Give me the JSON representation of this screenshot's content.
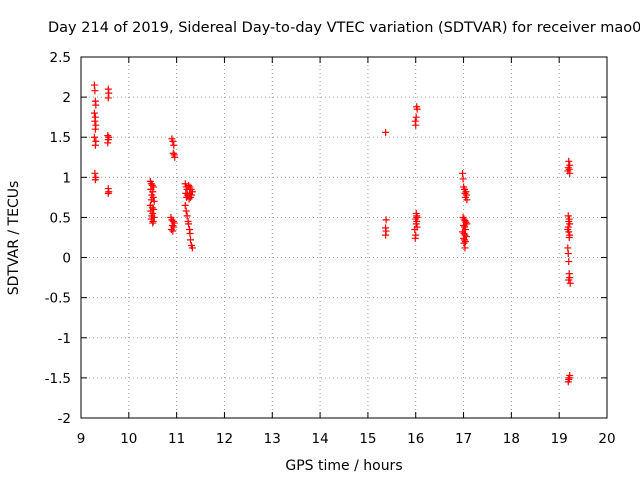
{
  "chart_data": {
    "type": "scatter",
    "title": "Day 214 of 2019, Sidereal Day-to-day VTEC variation (SDTVAR) for receiver mao0",
    "xlabel": "GPS time / hours",
    "ylabel": "SDTVAR / TECUs",
    "xlim": [
      9,
      20
    ],
    "ylim": [
      -2,
      2.5
    ],
    "xticks": [
      9,
      10,
      11,
      12,
      13,
      14,
      15,
      16,
      17,
      18,
      19,
      20
    ],
    "yticks": [
      -2,
      -1.5,
      -1,
      -0.5,
      0,
      0.5,
      1,
      1.5,
      2,
      2.5
    ],
    "grid": true,
    "marker": "+",
    "color": "#ff0000",
    "series": [
      {
        "name": "SDTVAR",
        "points": [
          [
            9.28,
            2.15
          ],
          [
            9.29,
            2.08
          ],
          [
            9.3,
            1.95
          ],
          [
            9.31,
            1.9
          ],
          [
            9.28,
            1.8
          ],
          [
            9.3,
            1.75
          ],
          [
            9.29,
            1.7
          ],
          [
            9.31,
            1.65
          ],
          [
            9.3,
            1.6
          ],
          [
            9.28,
            1.5
          ],
          [
            9.31,
            1.45
          ],
          [
            9.3,
            1.4
          ],
          [
            9.29,
            1.05
          ],
          [
            9.31,
            1.0
          ],
          [
            9.3,
            0.97
          ],
          [
            9.57,
            2.1
          ],
          [
            9.58,
            2.05
          ],
          [
            9.57,
            1.99
          ],
          [
            9.56,
            1.52
          ],
          [
            9.58,
            1.5
          ],
          [
            9.57,
            1.47
          ],
          [
            9.56,
            1.43
          ],
          [
            9.57,
            0.86
          ],
          [
            9.58,
            0.82
          ],
          [
            9.57,
            0.8
          ],
          [
            10.45,
            0.95
          ],
          [
            10.47,
            0.92
          ],
          [
            10.49,
            0.9
          ],
          [
            10.52,
            0.88
          ],
          [
            10.46,
            0.85
          ],
          [
            10.5,
            0.82
          ],
          [
            10.48,
            0.78
          ],
          [
            10.51,
            0.75
          ],
          [
            10.47,
            0.72
          ],
          [
            10.53,
            0.7
          ],
          [
            10.45,
            0.65
          ],
          [
            10.49,
            0.62
          ],
          [
            10.52,
            0.6
          ],
          [
            10.46,
            0.58
          ],
          [
            10.5,
            0.55
          ],
          [
            10.48,
            0.52
          ],
          [
            10.53,
            0.5
          ],
          [
            10.47,
            0.48
          ],
          [
            10.51,
            0.45
          ],
          [
            10.5,
            0.43
          ],
          [
            10.9,
            1.48
          ],
          [
            10.92,
            1.45
          ],
          [
            10.94,
            1.4
          ],
          [
            10.93,
            1.3
          ],
          [
            10.95,
            1.28
          ],
          [
            10.96,
            1.25
          ],
          [
            10.88,
            0.5
          ],
          [
            10.9,
            0.47
          ],
          [
            10.93,
            0.45
          ],
          [
            10.95,
            0.43
          ],
          [
            10.91,
            0.4
          ],
          [
            10.94,
            0.38
          ],
          [
            10.89,
            0.35
          ],
          [
            10.92,
            0.33
          ],
          [
            11.18,
            0.92
          ],
          [
            11.2,
            0.88
          ],
          [
            11.22,
            0.85
          ],
          [
            11.25,
            0.9
          ],
          [
            11.28,
            0.88
          ],
          [
            11.3,
            0.85
          ],
          [
            11.33,
            0.82
          ],
          [
            11.19,
            0.8
          ],
          [
            11.23,
            0.78
          ],
          [
            11.27,
            0.8
          ],
          [
            11.31,
            0.78
          ],
          [
            11.21,
            0.75
          ],
          [
            11.26,
            0.73
          ],
          [
            11.29,
            0.75
          ],
          [
            11.18,
            0.65
          ],
          [
            11.2,
            0.58
          ],
          [
            11.22,
            0.52
          ],
          [
            11.24,
            0.45
          ],
          [
            11.25,
            0.42
          ],
          [
            11.27,
            0.35
          ],
          [
            11.28,
            0.3
          ],
          [
            11.29,
            0.22
          ],
          [
            11.31,
            0.15
          ],
          [
            11.33,
            0.12
          ],
          [
            15.37,
            1.56
          ],
          [
            15.38,
            0.47
          ],
          [
            15.37,
            0.37
          ],
          [
            15.38,
            0.33
          ],
          [
            15.37,
            0.28
          ],
          [
            16.02,
            1.88
          ],
          [
            16.03,
            1.85
          ],
          [
            16.01,
            1.75
          ],
          [
            15.99,
            1.7
          ],
          [
            16.0,
            1.65
          ],
          [
            16.01,
            0.55
          ],
          [
            16.02,
            0.52
          ],
          [
            16.03,
            0.5
          ],
          [
            16.0,
            0.48
          ],
          [
            16.02,
            0.45
          ],
          [
            16.01,
            0.42
          ],
          [
            16.03,
            0.38
          ],
          [
            15.98,
            0.35
          ],
          [
            16.0,
            0.28
          ],
          [
            15.99,
            0.24
          ],
          [
            16.98,
            1.05
          ],
          [
            16.99,
            0.98
          ],
          [
            17.0,
            0.88
          ],
          [
            17.02,
            0.85
          ],
          [
            17.05,
            0.82
          ],
          [
            17.03,
            0.8
          ],
          [
            17.06,
            0.78
          ],
          [
            17.04,
            0.75
          ],
          [
            17.07,
            0.72
          ],
          [
            16.99,
            0.5
          ],
          [
            17.01,
            0.48
          ],
          [
            17.03,
            0.46
          ],
          [
            17.05,
            0.44
          ],
          [
            17.07,
            0.42
          ],
          [
            17.0,
            0.4
          ],
          [
            17.02,
            0.38
          ],
          [
            17.04,
            0.35
          ],
          [
            16.98,
            0.32
          ],
          [
            17.01,
            0.3
          ],
          [
            17.03,
            0.28
          ],
          [
            17.06,
            0.26
          ],
          [
            17.0,
            0.24
          ],
          [
            17.02,
            0.22
          ],
          [
            17.04,
            0.2
          ],
          [
            17.01,
            0.18
          ],
          [
            17.03,
            0.12
          ],
          [
            19.2,
            1.2
          ],
          [
            19.22,
            1.15
          ],
          [
            19.19,
            1.12
          ],
          [
            19.21,
            1.1
          ],
          [
            19.18,
            1.08
          ],
          [
            19.22,
            1.05
          ],
          [
            19.19,
            0.52
          ],
          [
            19.21,
            0.48
          ],
          [
            19.2,
            0.45
          ],
          [
            19.22,
            0.42
          ],
          [
            19.19,
            0.38
          ],
          [
            19.18,
            0.35
          ],
          [
            19.2,
            0.32
          ],
          [
            19.22,
            0.28
          ],
          [
            19.21,
            0.25
          ],
          [
            19.18,
            0.12
          ],
          [
            19.19,
            0.05
          ],
          [
            19.2,
            -0.05
          ],
          [
            19.21,
            -0.2
          ],
          [
            19.22,
            -0.25
          ],
          [
            19.2,
            -0.28
          ],
          [
            19.23,
            -0.32
          ],
          [
            19.22,
            -1.47
          ],
          [
            19.21,
            -1.5
          ],
          [
            19.2,
            -1.52
          ],
          [
            19.19,
            -1.55
          ]
        ]
      }
    ]
  }
}
